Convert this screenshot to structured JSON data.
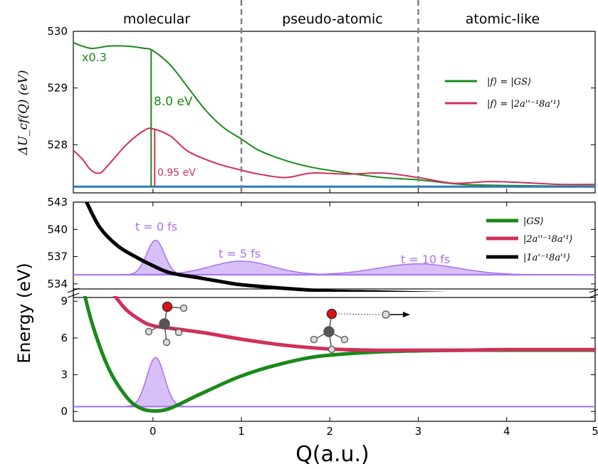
{
  "chart_data": [
    {
      "panel": "top",
      "type": "line",
      "ylabel": "ΔU_cf(Q) (eV)",
      "xlim": [
        -0.9,
        5.0
      ],
      "ylim": [
        527.15,
        530.0
      ],
      "yticks": [
        528,
        529,
        530
      ],
      "region_labels": [
        "molecular",
        "pseudo-atomic",
        "atomic-like"
      ],
      "region_dividers": [
        1,
        3
      ],
      "series": [
        {
          "name": "|f⟩ = |GS⟩",
          "color": "#1a8a1a",
          "x": [
            -0.9,
            -0.7,
            -0.5,
            -0.3,
            -0.1,
            0.0,
            0.2,
            0.4,
            0.6,
            0.8,
            1.0,
            1.2,
            1.5,
            1.8,
            2.2,
            2.6,
            3.0,
            3.5,
            4.0,
            4.5,
            5.0
          ],
          "y": [
            529.8,
            529.7,
            529.74,
            529.74,
            529.7,
            529.66,
            529.4,
            529.0,
            528.6,
            528.3,
            528.1,
            527.9,
            527.72,
            527.6,
            527.5,
            527.42,
            527.38,
            527.3,
            527.28,
            527.27,
            527.27
          ]
        },
        {
          "name": "|f⟩ = |2a''⁻¹8a'¹⟩",
          "color": "#d0305a",
          "x": [
            -0.9,
            -0.8,
            -0.7,
            -0.6,
            -0.5,
            -0.3,
            -0.1,
            0.0,
            0.2,
            0.4,
            0.7,
            1.0,
            1.2,
            1.5,
            1.8,
            2.2,
            2.6,
            3.0,
            3.4,
            3.8,
            4.2,
            4.6,
            5.0
          ],
          "y": [
            527.9,
            527.75,
            527.55,
            527.5,
            527.65,
            528.0,
            528.25,
            528.28,
            528.15,
            527.88,
            527.68,
            527.55,
            527.48,
            527.42,
            527.5,
            527.48,
            527.5,
            527.42,
            527.32,
            527.35,
            527.33,
            527.3,
            527.3
          ]
        },
        {
          "name": "baseline",
          "color": "#2c7bb6",
          "x": [
            -0.9,
            5.0
          ],
          "y": [
            527.26,
            527.26
          ]
        }
      ],
      "annotations": [
        {
          "text": "x0.3",
          "color": "#1a8a1a"
        },
        {
          "text": "8.0 eV",
          "color": "#1a8a1a"
        },
        {
          "text": "0.95 eV",
          "color": "#d0305a"
        }
      ]
    },
    {
      "panel": "bottom",
      "type": "line",
      "xlabel": "Q(a.u.)",
      "ylabel": "Energy (eV)",
      "xlim": [
        -0.9,
        5.0
      ],
      "xticks": [
        0,
        1,
        2,
        3,
        4,
        5
      ],
      "upper_ylim": [
        532.5,
        543.0
      ],
      "upper_yticks": [
        534,
        537,
        540,
        543
      ],
      "lower_ylim": [
        -0.8,
        10.0
      ],
      "lower_yticks": [
        0,
        3,
        6,
        9
      ],
      "series": [
        {
          "name": "|GS⟩",
          "color": "#1a8a1a",
          "x": [
            -0.85,
            -0.7,
            -0.5,
            -0.3,
            -0.15,
            0.0,
            0.15,
            0.3,
            0.5,
            0.8,
            1.0,
            1.3,
            1.7,
            2.0,
            2.5,
            3.0,
            3.5,
            4.0,
            5.0
          ],
          "y": [
            12.0,
            7.5,
            3.5,
            1.2,
            0.3,
            0.05,
            0.15,
            0.6,
            1.3,
            2.3,
            2.9,
            3.6,
            4.3,
            4.6,
            4.85,
            4.95,
            5.0,
            5.0,
            5.0
          ]
        },
        {
          "name": "|2a''⁻¹8a'¹⟩",
          "color": "#d0305a",
          "x": [
            -0.45,
            -0.3,
            -0.15,
            0.0,
            0.3,
            0.6,
            1.0,
            1.5,
            2.0,
            2.5,
            3.0,
            3.5,
            4.0,
            5.0
          ],
          "y": [
            9.6,
            8.3,
            7.5,
            7.0,
            6.7,
            6.4,
            5.9,
            5.4,
            5.1,
            5.0,
            5.0,
            5.0,
            5.05,
            5.05
          ]
        },
        {
          "name": "|1a'⁻¹8a'¹⟩",
          "color": "#000000",
          "x": [
            -0.75,
            -0.6,
            -0.4,
            -0.2,
            0.0,
            0.2,
            0.5,
            0.8,
            1.0,
            1.5,
            2.0,
            2.5,
            3.0,
            3.5,
            4.0,
            4.5,
            5.0
          ],
          "y": [
            543.0,
            540.2,
            538.2,
            537.0,
            536.0,
            535.2,
            534.7,
            534.2,
            533.9,
            533.5,
            533.2,
            533.1,
            533.0,
            532.9,
            532.85,
            532.85,
            532.9
          ]
        }
      ],
      "wavepackets": [
        {
          "label": "t = 0 fs",
          "panel": "upper",
          "center": 0.03,
          "width": 0.1,
          "height": 3.8,
          "baseline": 535.0
        },
        {
          "label": "t = 5 fs",
          "panel": "upper",
          "center": 1.0,
          "width": 0.35,
          "height": 1.5,
          "baseline": 535.0
        },
        {
          "label": "t = 10 fs",
          "panel": "upper",
          "center": 3.0,
          "width": 0.45,
          "height": 1.2,
          "baseline": 535.0
        },
        {
          "label": "",
          "panel": "lower",
          "center": 0.03,
          "width": 0.1,
          "height": 4.0,
          "baseline": 0.4
        }
      ],
      "wavepacket_color": "#a970f0"
    }
  ]
}
